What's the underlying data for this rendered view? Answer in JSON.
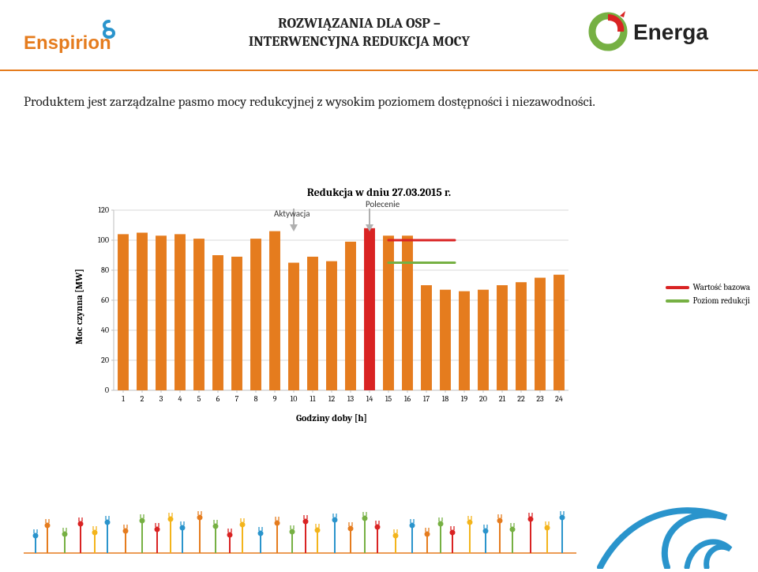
{
  "header": {
    "title_line1": "ROZWIĄZANIA DLA OSP –",
    "title_line2": "INTERWENCYJNA REDUKCJA MOCY",
    "title_fontsize": 18,
    "title_color": "#222222",
    "divider_color": "#e57c1e"
  },
  "logos": {
    "enspirion": {
      "text": "Enspirion",
      "text_color": "#e57c1e",
      "accent_color": "#2a94cc"
    },
    "energa": {
      "text": "Energa",
      "text_color": "#222222",
      "accent_color": "#76b043"
    }
  },
  "subtitle": "Produktem jest zarządzalne pasmo mocy redukcyjnej z wysokim poziomem dostępności i niezawodności.",
  "chart": {
    "type": "bar",
    "title": "Redukcja w dniu 27.03.2015 r.",
    "title_fontsize": 14,
    "ylabel": "Moc czynna [MW]",
    "xlabel": "Godziny doby [h]",
    "label_fontsize": 12,
    "categories": [
      "1",
      "2",
      "3",
      "4",
      "5",
      "6",
      "7",
      "8",
      "9",
      "10",
      "11",
      "12",
      "13",
      "14",
      "15",
      "16",
      "17",
      "18",
      "19",
      "20",
      "21",
      "22",
      "23",
      "24"
    ],
    "values": [
      104,
      105,
      103,
      104,
      101,
      90,
      89,
      101,
      106,
      85,
      89,
      86,
      99,
      108,
      103,
      103,
      70,
      67,
      66,
      67,
      70,
      72,
      75,
      77
    ],
    "highlight_index": 13,
    "highlight_color": "#d92323",
    "bar_color": "#e57c1e",
    "bar_width": 0.58,
    "ylim": [
      0,
      120
    ],
    "ytick_step": 20,
    "yticks": [
      0,
      20,
      40,
      60,
      80,
      100,
      120
    ],
    "grid_color": "#d9d9d9",
    "background_color": "#ffffff",
    "axis_color": "#bfbfbf",
    "tick_fontsize": 10,
    "baseline": {
      "x_start": 14.5,
      "x_end": 18,
      "y": 100,
      "color": "#d92323",
      "width": 3
    },
    "reduction_level": {
      "x_start": 14.5,
      "x_end": 18,
      "y": 85,
      "color": "#76b043",
      "width": 3
    },
    "annotations": {
      "aktywacja": {
        "text": "Aktywacja",
        "x_cat": 9.5,
        "arrow_color": "#b0b0b0"
      },
      "polecenie": {
        "text": "Polecenie",
        "x_cat": 13.5,
        "arrow_color": "#b0b0b0"
      }
    },
    "legend": [
      {
        "label": "Wartość bazowa",
        "color": "#d92323"
      },
      {
        "label": "Poziom redukcji",
        "color": "#76b043"
      }
    ]
  },
  "footer": {
    "plug_colors": [
      "#2a94cc",
      "#e57c1e",
      "#76b043",
      "#d92323",
      "#f3b41b"
    ],
    "swirl_color": "#2a94cc",
    "baseline_color": "#e57c1e"
  }
}
